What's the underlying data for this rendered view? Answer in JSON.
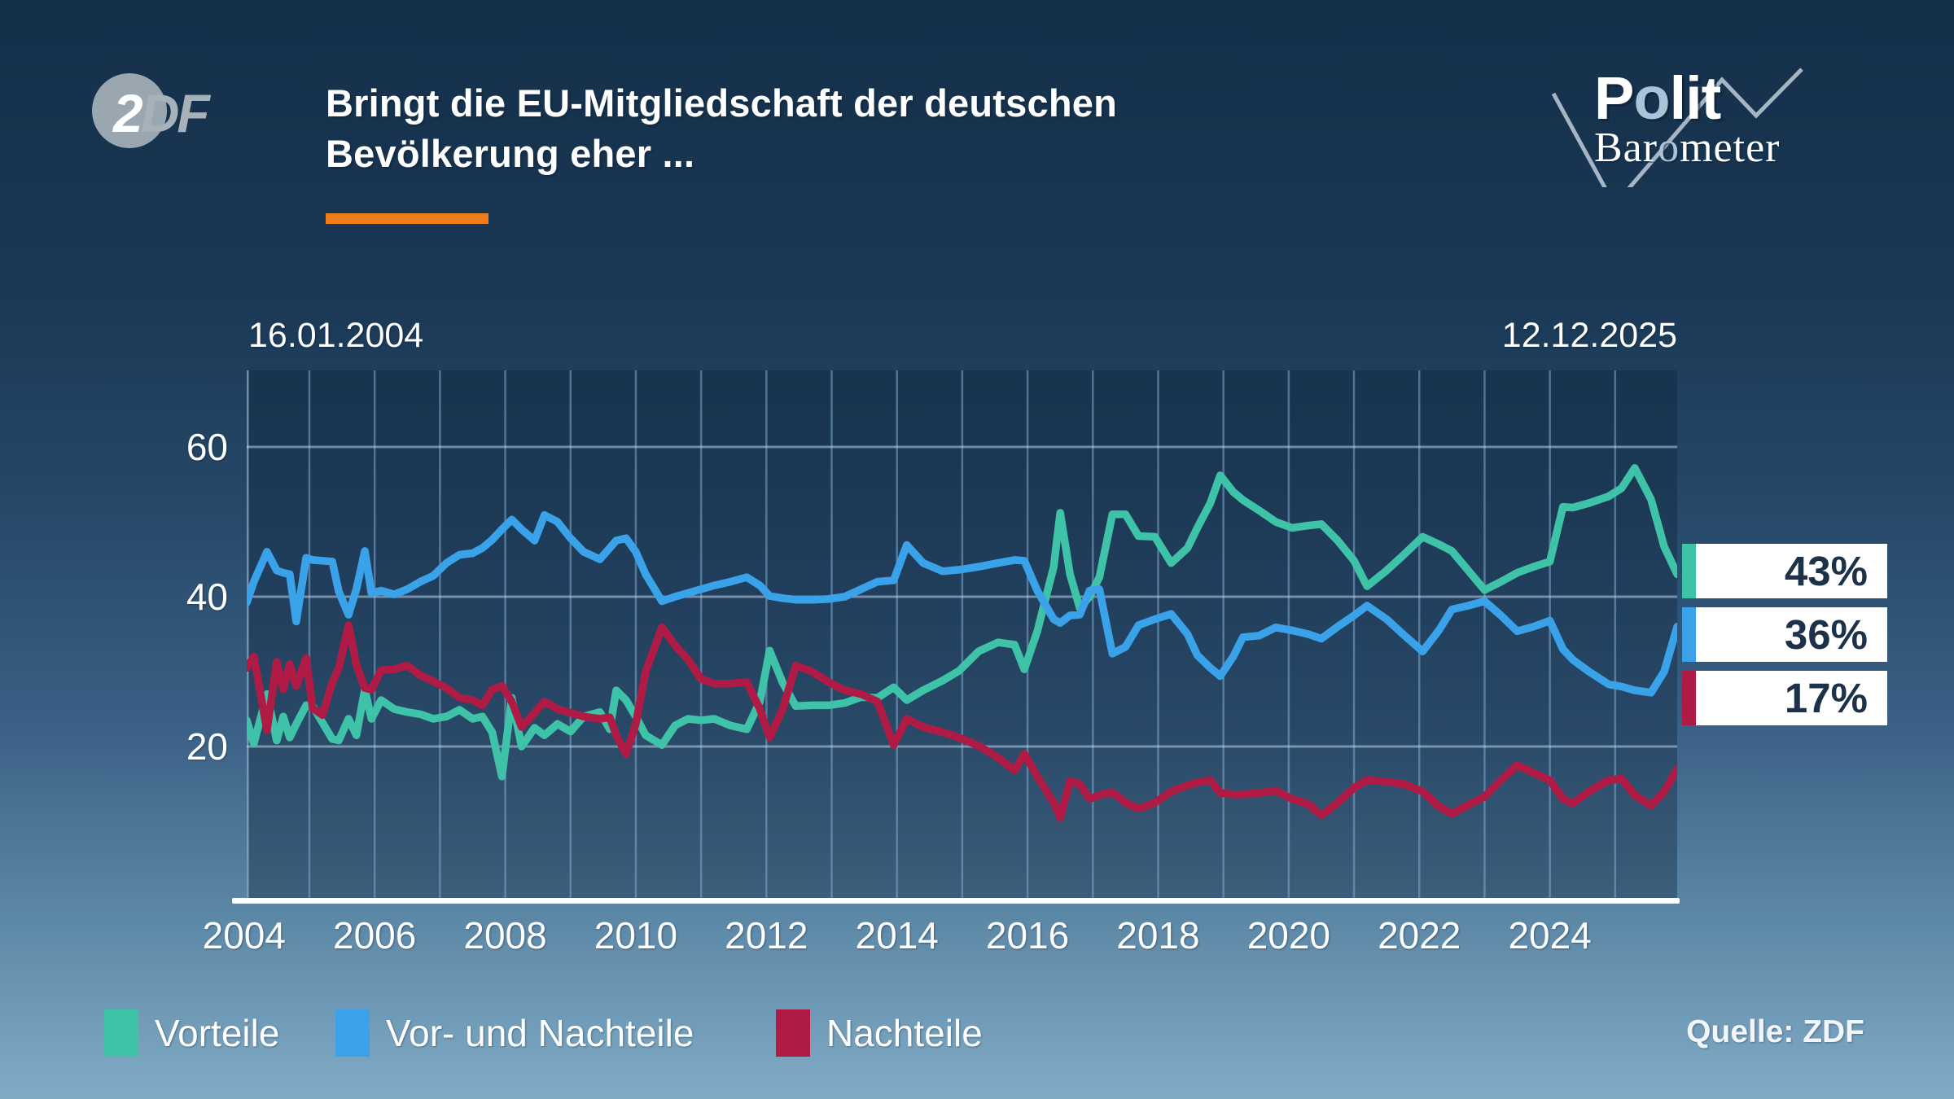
{
  "header": {
    "broadcaster": "ZDF",
    "zdf_logo_text": "2DF",
    "title_line1": "Bringt die EU-Mitgliedschaft der deutschen",
    "title_line2": "Bevölkerung eher ...",
    "accent_color": "#ef7d1a",
    "program_logo": {
      "line1_pre": "P",
      "line1_o": "o",
      "line1_post": "lit",
      "line2_pre": "Bar",
      "line2_o": "o",
      "line2_post": "meter"
    }
  },
  "source": "Quelle: ZDF",
  "legend": [
    {
      "label": "Vorteile",
      "color": "#3fc3a8"
    },
    {
      "label": "Vor- und Nachteile",
      "color": "#3aa2e8"
    },
    {
      "label": "Nachteile",
      "color": "#b01b45"
    }
  ],
  "chart_data": {
    "type": "line",
    "title": "Bringt die EU-Mitgliedschaft der deutschen Bevölkerung eher ...",
    "date_start": "16.01.2004",
    "date_end": "12.12.2025",
    "xlabel": "",
    "ylabel": "",
    "xlim": [
      2004.04,
      2025.95
    ],
    "ylim": [
      0,
      70
    ],
    "yticks": [
      20,
      40,
      60
    ],
    "xticks": [
      2004,
      2006,
      2008,
      2010,
      2012,
      2014,
      2016,
      2018,
      2020,
      2022,
      2024
    ],
    "grid": true,
    "legend_position": "bottom",
    "x": [
      2004.04,
      2004.15,
      2004.35,
      2004.5,
      2004.6,
      2004.7,
      2004.8,
      2004.95,
      2005.05,
      2005.2,
      2005.35,
      2005.45,
      2005.6,
      2005.72,
      2005.85,
      2005.95,
      2006.1,
      2006.3,
      2006.5,
      2006.7,
      2006.9,
      2007.1,
      2007.3,
      2007.5,
      2007.65,
      2007.8,
      2007.95,
      2008.1,
      2008.25,
      2008.45,
      2008.6,
      2008.8,
      2009.0,
      2009.2,
      2009.45,
      2009.6,
      2009.7,
      2009.85,
      2010.0,
      2010.15,
      2010.4,
      2010.6,
      2010.8,
      2011.0,
      2011.2,
      2011.45,
      2011.7,
      2011.9,
      2012.05,
      2012.25,
      2012.45,
      2012.7,
      2012.95,
      2013.2,
      2013.45,
      2013.7,
      2013.95,
      2014.15,
      2014.4,
      2014.7,
      2014.95,
      2015.25,
      2015.55,
      2015.8,
      2015.95,
      2016.15,
      2016.4,
      2016.5,
      2016.65,
      2016.8,
      2016.95,
      2017.1,
      2017.3,
      2017.5,
      2017.7,
      2017.95,
      2018.2,
      2018.45,
      2018.6,
      2018.8,
      2018.95,
      2019.15,
      2019.3,
      2019.55,
      2019.8,
      2020.05,
      2020.3,
      2020.5,
      2020.75,
      2021.0,
      2021.2,
      2021.5,
      2021.75,
      2022.05,
      2022.3,
      2022.5,
      2022.75,
      2023.0,
      2023.25,
      2023.5,
      2023.75,
      2024.0,
      2024.2,
      2024.35,
      2024.6,
      2024.9,
      2025.1,
      2025.3,
      2025.55,
      2025.75,
      2025.95
    ],
    "series": [
      {
        "name": "Vorteile",
        "color": "#3fc3a8",
        "end_label": "43%",
        "end_value": 43,
        "values": [
          23.5,
          20.4,
          27,
          20.8,
          24,
          21.2,
          23,
          25.5,
          25.4,
          23.2,
          21,
          20.8,
          23.7,
          21.5,
          27.6,
          23.7,
          26.2,
          25,
          24.6,
          24.3,
          23.7,
          24,
          24.9,
          23.7,
          24,
          21.9,
          16,
          26.5,
          20,
          22.5,
          21.5,
          23,
          22,
          24,
          24.6,
          22.3,
          27.5,
          26.2,
          24,
          21.5,
          20.2,
          22.8,
          23.7,
          23.5,
          23.7,
          22.8,
          22.3,
          26,
          32.8,
          28.5,
          25.4,
          25.5,
          25.5,
          25.8,
          26.6,
          26.5,
          27.9,
          26.2,
          27.5,
          28.8,
          30.1,
          32.7,
          33.9,
          33.6,
          30.3,
          35.4,
          44,
          51.2,
          43,
          38.5,
          40,
          42.6,
          51,
          51,
          48.1,
          48,
          44.5,
          46.5,
          49.2,
          52.5,
          56.2,
          54,
          52.9,
          51.5,
          50,
          49.2,
          49.5,
          49.7,
          47.5,
          44.8,
          41.4,
          43.5,
          45.5,
          48,
          47,
          46.1,
          43.5,
          40.9,
          42,
          43.2,
          44,
          44.7,
          52,
          51.9,
          52.5,
          53.4,
          54.5,
          57.2,
          53,
          46.7,
          43
        ]
      },
      {
        "name": "Vor- und Nachteile",
        "color": "#3aa2e8",
        "end_label": "36%",
        "end_value": 36,
        "values": [
          39.2,
          42,
          46,
          43.5,
          43.2,
          43,
          36.7,
          45.2,
          44.9,
          44.8,
          44.7,
          40.7,
          37.6,
          41,
          46.1,
          40.5,
          40.8,
          40.3,
          41,
          42,
          42.8,
          44.5,
          45.6,
          45.8,
          46.5,
          47.6,
          49,
          50.3,
          49,
          47.5,
          50.9,
          50,
          47.8,
          46,
          45,
          46.5,
          47.5,
          47.8,
          46,
          43,
          39.4,
          40,
          40.5,
          41,
          41.5,
          42,
          42.6,
          41.5,
          40.1,
          39.8,
          39.6,
          39.6,
          39.7,
          40,
          41,
          42,
          42.2,
          46.9,
          44.5,
          43.4,
          43.6,
          44,
          44.5,
          44.9,
          44.8,
          40.8,
          37,
          36.5,
          37.5,
          37.6,
          40.8,
          41,
          32.4,
          33.3,
          36.2,
          37,
          37.7,
          35,
          32.2,
          30.5,
          29.4,
          32,
          34.6,
          34.8,
          35.9,
          35.5,
          35,
          34.4,
          36,
          37.5,
          38.8,
          37,
          35,
          32.7,
          35.5,
          38.3,
          38.8,
          39.4,
          37.5,
          35.4,
          36,
          36.8,
          33,
          31.6,
          30,
          28.3,
          28,
          27.5,
          27.2,
          30,
          36
        ]
      },
      {
        "name": "Nachteile",
        "color": "#b01b45",
        "end_label": "17%",
        "end_value": 17,
        "values": [
          30.5,
          32,
          22.2,
          31.3,
          27.6,
          31,
          28.1,
          31.8,
          25.1,
          24.2,
          28.5,
          30.5,
          36.2,
          30.9,
          27.8,
          27.6,
          30.2,
          30.3,
          30.8,
          29.5,
          28.7,
          27.8,
          26.5,
          26.2,
          25.5,
          27.6,
          28.1,
          26,
          22.6,
          24.5,
          26,
          25,
          24.5,
          24,
          23.7,
          23.9,
          21.5,
          19,
          23,
          30,
          35.9,
          33.5,
          31.6,
          29,
          28.4,
          28.4,
          28.6,
          25,
          21.2,
          25,
          30.8,
          30,
          28.6,
          27.5,
          27,
          26,
          20.2,
          23.7,
          22.6,
          21.9,
          21.2,
          20.1,
          18.5,
          16.8,
          19,
          16,
          12.5,
          10.5,
          15.4,
          15,
          13,
          13.5,
          13.9,
          12.5,
          11.7,
          12.5,
          14,
          14.8,
          15.2,
          15.5,
          13.8,
          13.6,
          13.6,
          13.8,
          14.1,
          13,
          12.3,
          10.8,
          12.5,
          14.5,
          15.5,
          15.3,
          15,
          14,
          12,
          11,
          12.2,
          13.3,
          15.5,
          17.5,
          16.5,
          15.5,
          13,
          12.4,
          14,
          15.5,
          15.7,
          13.5,
          12.1,
          14,
          17
        ]
      }
    ]
  }
}
